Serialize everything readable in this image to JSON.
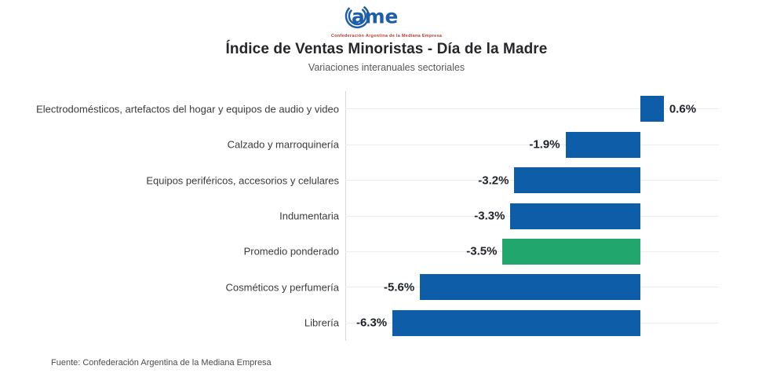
{
  "logo": {
    "wordmark": "Came",
    "tagline": "Confederación Argentina de la Mediana Empresa",
    "brand_color": "#1e5da8",
    "tagline_color": "#c03a2b"
  },
  "header": {
    "title": "Índice de Ventas Minoristas - Día de la Madre",
    "subtitle": "Variaciones interanuales sectoriales"
  },
  "footer": {
    "source": "Fuente: Confederación Argentina de la Mediana Empresa"
  },
  "chart_data": {
    "type": "bar",
    "orientation": "horizontal",
    "title": "Índice de Ventas Minoristas - Día de la Madre",
    "subtitle": "Variaciones interanuales sectoriales",
    "categories": [
      "Electrodomésticos, artefactos del hogar y equipos de audio y video",
      "Calzado y marroquinería",
      "Equipos periféricos, accesorios y celulares",
      "Indumentaria",
      "Promedio ponderado",
      "Cosméticos y perfumería",
      "Librería"
    ],
    "values": [
      0.6,
      -1.9,
      -3.2,
      -3.3,
      -3.5,
      -5.6,
      -6.3
    ],
    "value_labels": [
      "0.6%",
      "-1.9%",
      "-3.2%",
      "-3.3%",
      "-3.5%",
      "-5.6%",
      "-6.3%"
    ],
    "unit": "%",
    "xlim": [
      -7.5,
      2.0
    ],
    "highlight_index": 4,
    "colors": {
      "default_bar": "#0e5da8",
      "highlight_bar": "#21a76e",
      "gridline": "#ececec",
      "axis": "#d8d8d8",
      "value_text": "#20242c",
      "category_text": "#3b3b3d"
    },
    "grid": "horizontal line per category",
    "legend": "none"
  }
}
